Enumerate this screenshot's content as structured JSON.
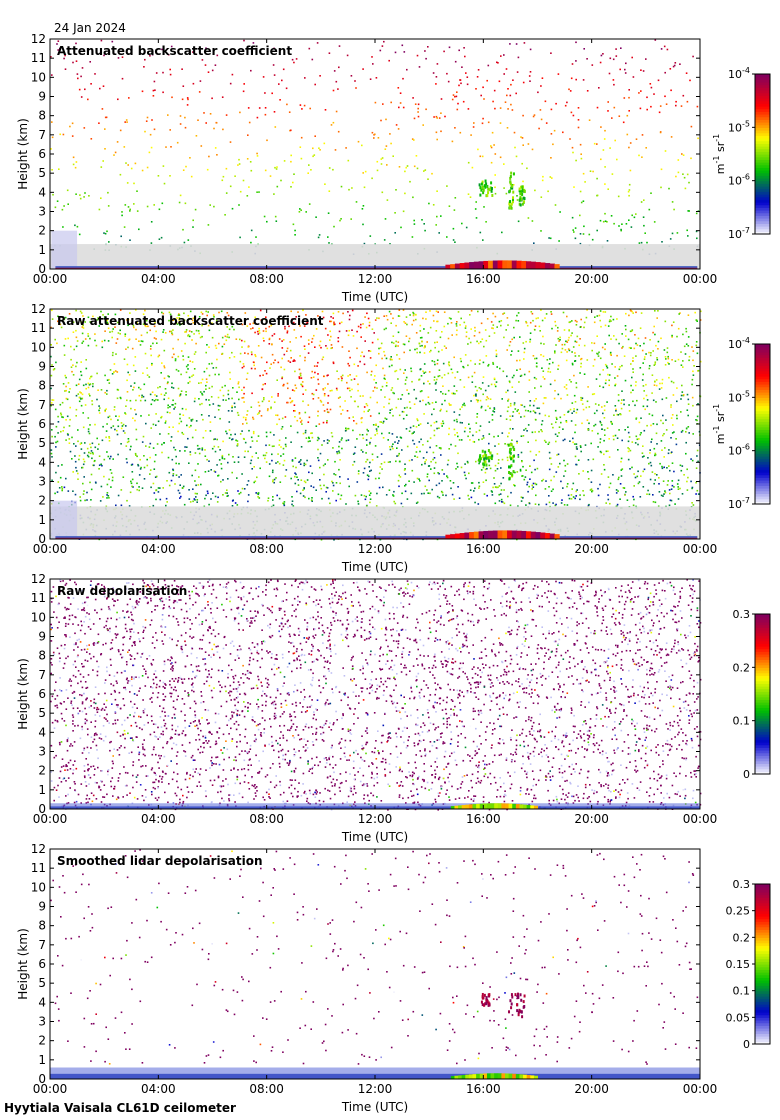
{
  "date": "24 Jan 2024",
  "footer": "Hyytiala Vaisala CL61D ceilometer",
  "x_axis": {
    "label": "Time (UTC)",
    "ticks": [
      "00:00",
      "04:00",
      "08:00",
      "12:00",
      "16:00",
      "20:00",
      "00:00"
    ]
  },
  "y_axis": {
    "label": "Height (km)",
    "ticks": [
      "0",
      "1",
      "2",
      "3",
      "4",
      "5",
      "6",
      "7",
      "8",
      "9",
      "10",
      "11",
      "12"
    ]
  },
  "colors": {
    "missing": "#dddddd",
    "colormap": [
      "#ffffff",
      "#0000cd",
      "#00c000",
      "#ffff00",
      "#ff0000",
      "#7f0060"
    ]
  },
  "chart_data": [
    {
      "type": "heatmap",
      "title": "Attenuated backscatter coefficient",
      "xlabel": "Time (UTC)",
      "ylabel": "Height (km)",
      "xlim": [
        0,
        24
      ],
      "ylim": [
        0,
        12
      ],
      "scale": "log",
      "colorbar": {
        "unit_base": "m",
        "unit_exp1": "-1",
        "unit_mid": " sr",
        "unit_exp2": "-1",
        "ticks": [
          {
            "base": "10",
            "exp": "-4",
            "value": -4
          },
          {
            "base": "10",
            "exp": "-5",
            "value": -5
          },
          {
            "base": "10",
            "exp": "-6",
            "value": -6
          },
          {
            "base": "10",
            "exp": "-7",
            "value": -7
          }
        ],
        "range": [
          -7,
          -4
        ]
      },
      "features": {
        "surface_layer": [
          {
            "t0": 0.2,
            "t1": 23.9,
            "h": 0.15
          }
        ],
        "boundary_aerosol": [
          {
            "t0": 14.6,
            "t1": 18.8,
            "h": 0.45
          }
        ],
        "clouds": [
          {
            "t0": 15.8,
            "t1": 16.3,
            "h0": 3.9,
            "h1": 4.7
          },
          {
            "t0": 16.9,
            "t1": 17.1,
            "h0": 3.2,
            "h1": 5.1
          },
          {
            "t0": 17.3,
            "t1": 17.5,
            "h0": 3.4,
            "h1": 4.4
          }
        ]
      }
    },
    {
      "type": "heatmap",
      "title": "Raw attenuated backscatter coefficient",
      "xlabel": "Time (UTC)",
      "ylabel": "Height (km)",
      "xlim": [
        0,
        24
      ],
      "ylim": [
        0,
        12
      ],
      "scale": "log",
      "colorbar": {
        "unit_base": "m",
        "unit_exp1": "-1",
        "unit_mid": " sr",
        "unit_exp2": "-1",
        "ticks": [
          {
            "base": "10",
            "exp": "-4",
            "value": -4
          },
          {
            "base": "10",
            "exp": "-5",
            "value": -5
          },
          {
            "base": "10",
            "exp": "-6",
            "value": -6
          },
          {
            "base": "10",
            "exp": "-7",
            "value": -7
          }
        ],
        "range": [
          -7,
          -4
        ]
      },
      "features": {
        "surface_layer": [
          {
            "t0": 0.2,
            "t1": 23.9,
            "h": 0.15
          }
        ],
        "boundary_aerosol": [
          {
            "t0": 14.6,
            "t1": 18.8,
            "h": 0.45
          }
        ],
        "clouds": [
          {
            "t0": 15.8,
            "t1": 16.3,
            "h0": 3.9,
            "h1": 4.7
          },
          {
            "t0": 16.9,
            "t1": 17.1,
            "h0": 3.2,
            "h1": 5.1
          }
        ]
      }
    },
    {
      "type": "heatmap",
      "title": "Raw depolarisation",
      "xlabel": "Time (UTC)",
      "ylabel": "Height (km)",
      "xlim": [
        0,
        24
      ],
      "ylim": [
        0,
        12
      ],
      "scale": "linear",
      "colorbar": {
        "ticks": [
          {
            "base": "0.3",
            "value": 0.3
          },
          {
            "base": "0.2",
            "value": 0.2
          },
          {
            "base": "0.1",
            "value": 0.1
          },
          {
            "base": "0",
            "value": 0
          }
        ],
        "range": [
          0,
          0.3
        ]
      },
      "features": {
        "surface_layer": [
          {
            "t0": 0.0,
            "t1": 24.0,
            "h": 0.3
          }
        ],
        "boundary_aerosol": [
          {
            "t0": 14.8,
            "t1": 18.0,
            "h": 0.3
          }
        ],
        "clouds": []
      }
    },
    {
      "type": "heatmap",
      "title": "Smoothed lidar depolarisation",
      "xlabel": "Time (UTC)",
      "ylabel": "Height (km)",
      "xlim": [
        0,
        24
      ],
      "ylim": [
        0,
        12
      ],
      "scale": "linear",
      "colorbar": {
        "ticks": [
          {
            "base": "0.3",
            "value": 0.3
          },
          {
            "base": "0.25",
            "value": 0.25
          },
          {
            "base": "0.2",
            "value": 0.2
          },
          {
            "base": "0.15",
            "value": 0.15
          },
          {
            "base": "0.1",
            "value": 0.1
          },
          {
            "base": "0.05",
            "value": 0.05
          },
          {
            "base": "0",
            "value": 0
          }
        ],
        "range": [
          0,
          0.3
        ]
      },
      "features": {
        "surface_layer": [
          {
            "t0": 0.0,
            "t1": 24.0,
            "h": 0.6
          }
        ],
        "boundary_aerosol": [
          {
            "t0": 14.8,
            "t1": 18.0,
            "h": 0.3
          }
        ],
        "clouds": [
          {
            "t0": 15.9,
            "t1": 16.2,
            "h0": 3.9,
            "h1": 4.5
          },
          {
            "t0": 16.9,
            "t1": 17.5,
            "h0": 3.3,
            "h1": 4.6
          }
        ]
      }
    }
  ]
}
